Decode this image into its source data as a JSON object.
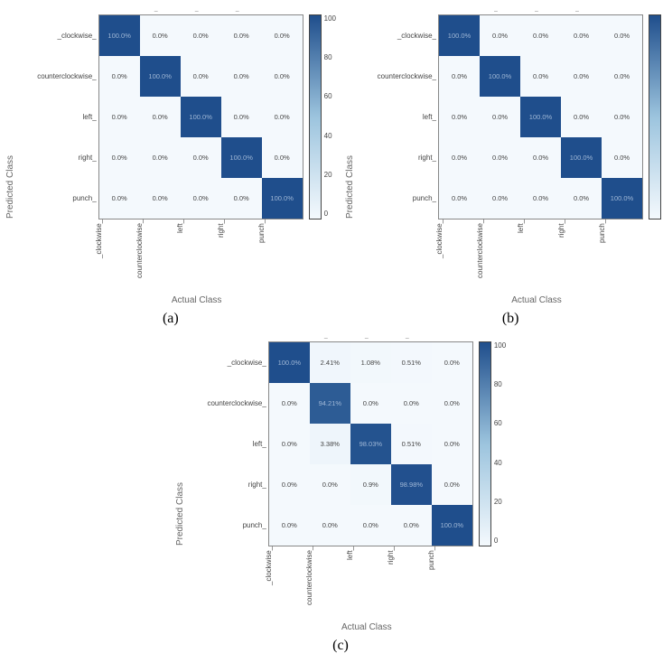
{
  "labels": {
    "yaxis": "Predicted Class",
    "xaxis": "Actual Class"
  },
  "classes": [
    "_clockwise_",
    "counterclockwise_",
    "left_",
    "right_",
    "punch_"
  ],
  "cell_size": 45,
  "cbar": {
    "ticks": [
      "100",
      "80",
      "60",
      "40",
      "20",
      "0"
    ],
    "grad_top": "#1f4e8c",
    "grad_bottom": "#f4f9fd"
  },
  "font": {
    "cell_pt": 7.5,
    "tick_pt": 8,
    "label_pt": 10,
    "sub_pt": 16
  },
  "panels": [
    {
      "sub": "(a)",
      "values": [
        [
          100.0,
          0.0,
          0.0,
          0.0,
          0.0
        ],
        [
          0.0,
          100.0,
          0.0,
          0.0,
          0.0
        ],
        [
          0.0,
          0.0,
          100.0,
          0.0,
          0.0
        ],
        [
          0.0,
          0.0,
          0.0,
          100.0,
          0.0
        ],
        [
          0.0,
          0.0,
          0.0,
          0.0,
          100.0
        ]
      ],
      "text": [
        [
          "100.0%",
          "0.0%",
          "0.0%",
          "0.0%",
          "0.0%"
        ],
        [
          "0.0%",
          "100.0%",
          "0.0%",
          "0.0%",
          "0.0%"
        ],
        [
          "0.0%",
          "0.0%",
          "100.0%",
          "0.0%",
          "0.0%"
        ],
        [
          "0.0%",
          "0.0%",
          "0.0%",
          "100.0%",
          "0.0%"
        ],
        [
          "0.0%",
          "0.0%",
          "0.0%",
          "0.0%",
          "100.0%"
        ]
      ]
    },
    {
      "sub": "(b)",
      "values": [
        [
          100.0,
          0.0,
          0.0,
          0.0,
          0.0
        ],
        [
          0.0,
          100.0,
          0.0,
          0.0,
          0.0
        ],
        [
          0.0,
          0.0,
          100.0,
          0.0,
          0.0
        ],
        [
          0.0,
          0.0,
          0.0,
          100.0,
          0.0
        ],
        [
          0.0,
          0.0,
          0.0,
          0.0,
          100.0
        ]
      ],
      "text": [
        [
          "100.0%",
          "0.0%",
          "0.0%",
          "0.0%",
          "0.0%"
        ],
        [
          "0.0%",
          "100.0%",
          "0.0%",
          "0.0%",
          "0.0%"
        ],
        [
          "0.0%",
          "0.0%",
          "100.0%",
          "0.0%",
          "0.0%"
        ],
        [
          "0.0%",
          "0.0%",
          "0.0%",
          "100.0%",
          "0.0%"
        ],
        [
          "0.0%",
          "0.0%",
          "0.0%",
          "0.0%",
          "100.0%"
        ]
      ]
    },
    {
      "sub": "(c)",
      "values": [
        [
          100.0,
          2.41,
          1.08,
          0.51,
          0.0
        ],
        [
          0.0,
          94.21,
          0.0,
          0.0,
          0.0
        ],
        [
          0.0,
          3.38,
          98.03,
          0.51,
          0.0
        ],
        [
          0.0,
          0.0,
          0.9,
          98.98,
          0.0
        ],
        [
          0.0,
          0.0,
          0.0,
          0.0,
          100.0
        ]
      ],
      "text": [
        [
          "100.0%",
          "2.41%",
          "1.08%",
          "0.51%",
          "0.0%"
        ],
        [
          "0.0%",
          "94.21%",
          "0.0%",
          "0.0%",
          "0.0%"
        ],
        [
          "0.0%",
          "3.38%",
          "98.03%",
          "0.51%",
          "0.0%"
        ],
        [
          "0.0%",
          "0.0%",
          "0.9%",
          "98.98%",
          "0.0%"
        ],
        [
          "0.0%",
          "0.0%",
          "0.0%",
          "0.0%",
          "100.0%"
        ]
      ]
    }
  ],
  "colormap": {
    "low": "#f4f9fd",
    "mid": "#9cc4de",
    "high": "#1f4e8c"
  }
}
